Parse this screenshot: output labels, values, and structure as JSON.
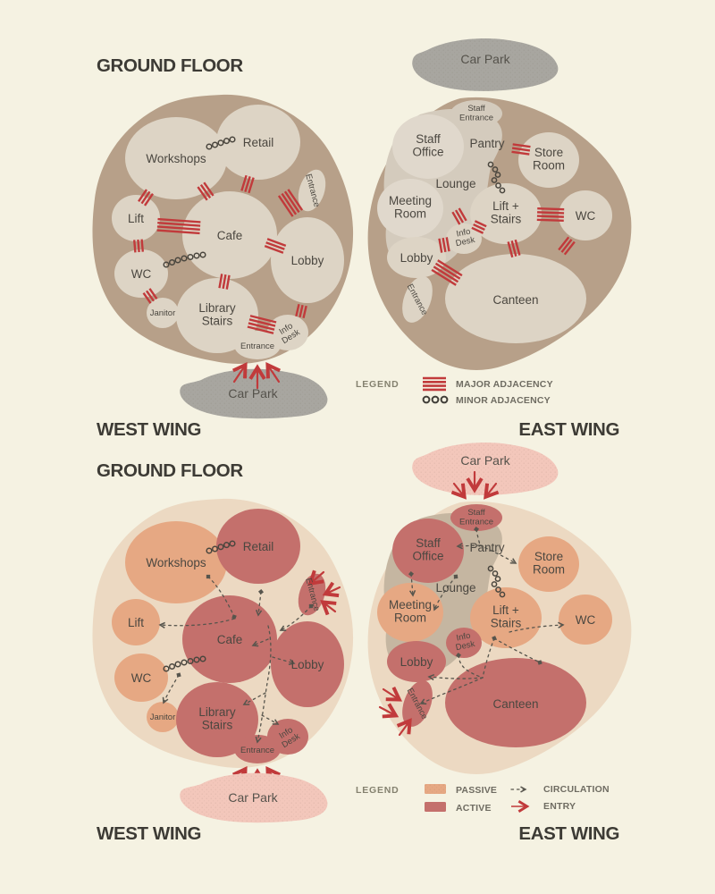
{
  "titles": {
    "floor": "GROUND FLOOR",
    "west_wing": "WEST WING",
    "east_wing": "EAST WING"
  },
  "rooms_west": {
    "workshops": "Workshops",
    "retail": "Retail",
    "entrance_side": "Entrance",
    "lift": "Lift",
    "cafe": "Cafe",
    "lobby": "Lobby",
    "wc": "WC",
    "janitor": "Janitor",
    "library_stairs": "Library\nStairs",
    "info_desk": "Info\nDesk",
    "entrance": "Entrance",
    "car_park": "Car Park"
  },
  "rooms_east": {
    "staff_entrance": "Staff\nEntrance",
    "staff_office": "Staff\nOffice",
    "pantry": "Pantry",
    "store_room": "Store\nRoom",
    "lounge": "Lounge",
    "meeting_room": "Meeting\nRoom",
    "lift_stairs": "Lift +\nStairs",
    "wc": "WC",
    "info_desk": "Info\nDesk",
    "lobby": "Lobby",
    "entrance": "Entrance",
    "canteen": "Canteen",
    "car_park": "Car Park"
  },
  "adjacency_legend": {
    "label": "LEGEND",
    "major": "MAJOR ADJACENCY",
    "minor": "MINOR ADJACENCY"
  },
  "zoning_legend": {
    "label": "LEGEND",
    "passive": "PASSIVE",
    "active": "ACTIVE",
    "circulation": "CIRCULATION",
    "entry": "ENTRY"
  },
  "colors": {
    "background": "#f5f2e2",
    "blob_top": "#b7a089",
    "bubble_top": "#ddd4c5",
    "lounge_top": "#d4cbbd",
    "blob_bottom": "#ecd9c2",
    "passive": "#e6a883",
    "active": "#c4706c",
    "lounge_bottom": "#c5b6a1",
    "car_park_top": "#a8a6a0",
    "car_park_bottom": "#f3c7bb",
    "adjacency_red": "#c13a3b",
    "circulation_gray": "#57554d",
    "title_text": "#3d3b35"
  }
}
